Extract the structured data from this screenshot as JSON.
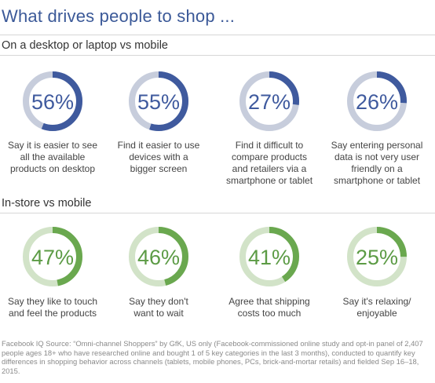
{
  "title": "What drives people to shop ...",
  "sections": [
    {
      "heading": "On a desktop or laptop vs mobile"
    },
    {
      "heading": "In-store vs mobile"
    }
  ],
  "chart_data": [
    {
      "type": "pie",
      "title": "On a desktop or laptop vs mobile",
      "colors": {
        "fill": "#3f5a9e",
        "track": "#c7cddc",
        "text": "#3f5a9e"
      },
      "categories": [
        "Say it is easier to see all the available products on desktop",
        "Find it easier to use devices with a bigger screen",
        "Find it difficult to compare products and retailers via a smartphone or tablet",
        "Say entering personal data is not very user friendly on a smartphone or tablet"
      ],
      "values": [
        56,
        55,
        27,
        26
      ],
      "value_labels": [
        "56%",
        "55%",
        "27%",
        "26%"
      ],
      "caption_lines": [
        [
          "Say it is easier to see",
          "all the available",
          "products on desktop"
        ],
        [
          "Find it easier to use",
          "devices with a",
          "bigger screen"
        ],
        [
          "Find it difficult to",
          "compare products",
          "and retailers via a",
          "smartphone or tablet"
        ],
        [
          "Say entering personal",
          "data is not very user",
          "friendly on a",
          "smartphone or tablet"
        ]
      ]
    },
    {
      "type": "pie",
      "title": "In-store vs mobile",
      "colors": {
        "fill": "#6aa84f",
        "track": "#d2e3c8",
        "text": "#5c9b45"
      },
      "categories": [
        "Say they like to touch and feel the products",
        "Say they don't want to wait",
        "Agree that shipping costs too much",
        "Say it's relaxing/ enjoyable"
      ],
      "values": [
        47,
        46,
        41,
        25
      ],
      "value_labels": [
        "47%",
        "46%",
        "41%",
        "25%"
      ],
      "caption_lines": [
        [
          "Say they like to touch",
          "and feel the products"
        ],
        [
          "Say they don't",
          "want to wait"
        ],
        [
          "Agree that shipping",
          "costs too much"
        ],
        [
          "Say it's relaxing/",
          "enjoyable"
        ]
      ]
    }
  ],
  "footnote": "Facebook IQ Source: “Omni-channel Shoppers” by GfK, US only (Facebook-commissioned online study and opt-in panel of 2,407 people ages 18+ who have researched online and bought 1 of 5 key categories in the last 3 months), conducted to quantify key differences in shopping behavior across channels (tablets, mobile phones, PCs, brick-and-mortar retails) and fielded Sep 16–18, 2015."
}
